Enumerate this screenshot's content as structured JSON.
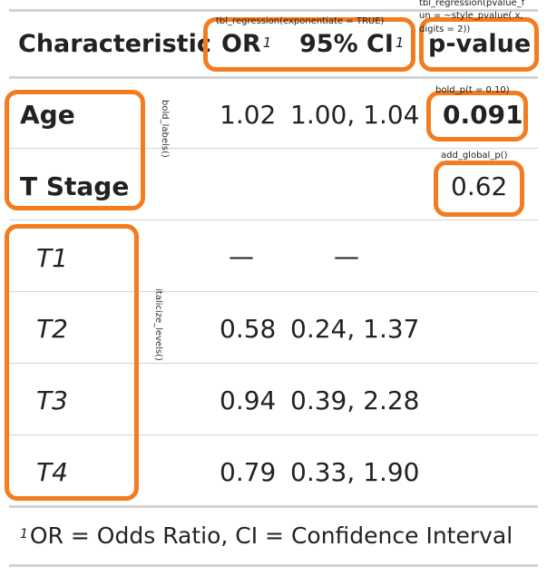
{
  "table": {
    "columns": {
      "characteristic": "Characteristic",
      "or": "OR",
      "ci": "95% CI",
      "pvalue": "p-value",
      "footnote_mark": "1"
    },
    "rows": [
      {
        "label": "Age",
        "or": "1.02",
        "ci": "1.00, 1.04",
        "p": "0.091"
      },
      {
        "label": "T Stage",
        "or": "",
        "ci": "",
        "p": "0.62"
      },
      {
        "label": "T1",
        "or": "—",
        "ci": "—",
        "p": ""
      },
      {
        "label": "T2",
        "or": "0.58",
        "ci": "0.24, 1.37",
        "p": ""
      },
      {
        "label": "T3",
        "or": "0.94",
        "ci": "0.39, 2.28",
        "p": ""
      },
      {
        "label": "T4",
        "or": "0.79",
        "ci": "0.33, 1.90",
        "p": ""
      }
    ],
    "footnote": {
      "mark": "1",
      "text": "OR = Odds Ratio, CI = Confidence Interval"
    }
  },
  "annotations": {
    "exponentiate": "tbl_regression(exponentiate = TRUE)",
    "pvalue_fun_line1": "tbl_regression(pvalue_f",
    "pvalue_fun_line2": "un = ~style_pvalue(.x,",
    "pvalue_fun_line3": "digits = 2))",
    "bold_p": "bold_p(t = 0.10)",
    "add_global_p": "add_global_p()",
    "bold_labels": "bold_labels()",
    "italicize_levels": "italicize_levels()"
  },
  "colors": {
    "highlight": "#f47c20",
    "rule": "#d3d3d3",
    "text": "#222222"
  }
}
